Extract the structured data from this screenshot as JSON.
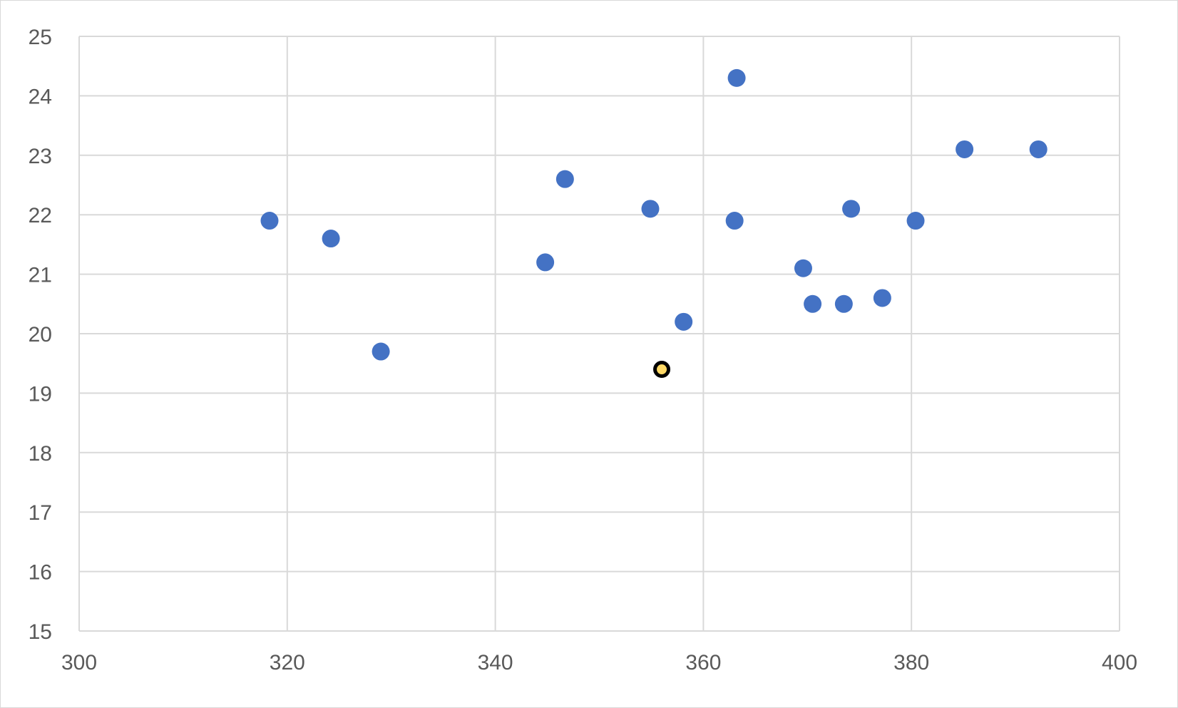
{
  "chart_data": {
    "type": "scatter",
    "title": "",
    "xlabel": "",
    "ylabel": "",
    "xlim": [
      300,
      400
    ],
    "ylim": [
      15,
      25
    ],
    "x_ticks": [
      300,
      320,
      340,
      360,
      380,
      400
    ],
    "y_ticks": [
      15,
      16,
      17,
      18,
      19,
      20,
      21,
      22,
      23,
      24,
      25
    ],
    "grid": true,
    "legend": "none",
    "series": [
      {
        "color": "#4472c4",
        "points": [
          {
            "x": 318.3,
            "y": 21.9
          },
          {
            "x": 324.2,
            "y": 21.6
          },
          {
            "x": 329.0,
            "y": 19.7
          },
          {
            "x": 344.8,
            "y": 21.2
          },
          {
            "x": 346.7,
            "y": 22.6
          },
          {
            "x": 354.9,
            "y": 22.1
          },
          {
            "x": 358.1,
            "y": 20.2
          },
          {
            "x": 363.0,
            "y": 21.9
          },
          {
            "x": 363.2,
            "y": 24.3
          },
          {
            "x": 369.6,
            "y": 21.1
          },
          {
            "x": 370.5,
            "y": 20.5
          },
          {
            "x": 373.5,
            "y": 20.5
          },
          {
            "x": 374.2,
            "y": 22.1
          },
          {
            "x": 377.2,
            "y": 20.6
          },
          {
            "x": 380.4,
            "y": 21.9
          },
          {
            "x": 385.1,
            "y": 23.1
          },
          {
            "x": 392.2,
            "y": 23.1
          }
        ]
      },
      {
        "color": "#ffd966",
        "edge_color": "#000000",
        "points": [
          {
            "x": 356.0,
            "y": 19.4
          }
        ]
      }
    ]
  }
}
